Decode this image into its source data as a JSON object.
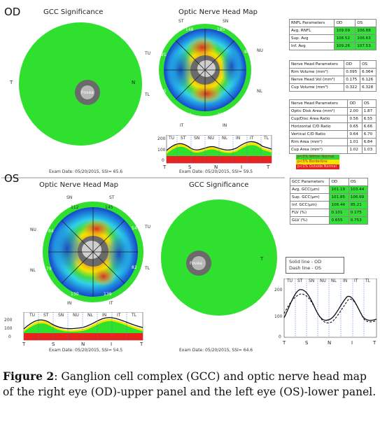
{
  "od": {
    "eye_label": "OD",
    "gcc_title": "GCC Significance",
    "onh_title": "Optic Nerve Head Map",
    "fovea": "Fovea",
    "side_left": "T",
    "side_right": "N",
    "onh_labels": {
      "ST": "ST",
      "SN": "SN",
      "TU": "TU",
      "NU": "NU",
      "TL": "TL",
      "NL": "NL",
      "IT": "IT",
      "IN": "IN"
    },
    "onh_values": {
      "top_left": "148",
      "top_right": "185",
      "left_upper": "91",
      "right_upper": "86",
      "left_lower": "85",
      "bottom_left": "131",
      "bottom_right": "135"
    },
    "graph_yticks": [
      "200",
      "100",
      "0"
    ],
    "graph_sectors": [
      "TU",
      "ST",
      "SN",
      "NU",
      "NL",
      "IN",
      "IT",
      "TL"
    ],
    "graph_xlabels": [
      "T",
      "S",
      "N",
      "I",
      "T"
    ],
    "exam_line": "Exam Date: 05/20/2015, SSI= 65.6",
    "exam_line_right": "Exam Date: 05/20/2015, SSI= 59.5"
  },
  "os": {
    "eye_label": "OS",
    "gcc_title": "GCC Significance",
    "onh_title": "Optic Nerve Head Map",
    "fovea": "Fovea",
    "side_right": "T",
    "onh_labels": {
      "SN": "SN",
      "ST": "ST",
      "NU": "NU",
      "TU": "TU",
      "NL": "NL",
      "TL": "TL",
      "IN": "IN",
      "IT": "IT"
    },
    "onh_values": {
      "top_left": "112",
      "top_right": "145",
      "left_upper": "84",
      "right_upper": "54",
      "left_lower": "79",
      "right_lower": "82",
      "bottom_left": "130",
      "bottom_right": "139"
    },
    "graph_yticks": [
      "200",
      "100",
      "0"
    ],
    "graph_sectors": [
      "TU",
      "ST",
      "SN",
      "NU",
      "NL",
      "IN",
      "IT",
      "TL"
    ],
    "graph_xlabels": [
      "T",
      "S",
      "N",
      "I",
      "T"
    ],
    "exam_line": "Exam Date: 05/20/2015, SSI= 54.5",
    "exam_line_right": "Exam Date: 05/20/2015, SSI= 64.6"
  },
  "rnfl_table": {
    "headers": [
      "RNFL Parameters",
      "OD",
      "OS"
    ],
    "rows": [
      [
        "Avg. RNFL",
        "109.09",
        "106.88"
      ],
      [
        "Sup. Avg",
        "108.52",
        "106.63"
      ],
      [
        "Inf. Avg",
        "109.26",
        "107.53"
      ]
    ]
  },
  "nerve_head_table_1": {
    "headers": [
      "Nerve Head Parameters",
      "OD",
      "OS"
    ],
    "rows": [
      [
        "Rim Volume (mm³)",
        "0.095",
        "6.064"
      ],
      [
        "Nerve Head Vol (mm³)",
        "0.175",
        "6.126"
      ],
      [
        "Cup Volume (mm³)",
        "0.322",
        "6.328"
      ]
    ]
  },
  "nerve_head_table_2": {
    "headers": [
      "Nerve Head Parameters",
      "OD",
      "OS"
    ],
    "rows": [
      [
        "Optic Disk Area (mm²)",
        "2.00",
        "1.87"
      ],
      [
        "Cup/Disc Area Ratio",
        "0.56",
        "6.55"
      ],
      [
        "Horizontal C/D Ratio",
        "0.65",
        "6.66"
      ],
      [
        "Vertical C/D Ratio",
        "0.64",
        "6.70"
      ],
      [
        "Rim Area (mm²)",
        "1.01",
        "6.84"
      ],
      [
        "Cup Area (mm²)",
        "1.02",
        "1.03"
      ]
    ]
  },
  "legend": {
    "items": [
      "p<5% Within Normal",
      "p<5% Borderline",
      "p<1% Outside Normal"
    ],
    "colors": [
      "#33d633",
      "#f2e600",
      "#e8231f"
    ]
  },
  "gcc_table": {
    "headers": [
      "GCC Parameters",
      "OD",
      "OS"
    ],
    "rows": [
      [
        "Avg. GCC(µm)",
        "101.19",
        "103.44"
      ],
      [
        "Sup. GCC(µm)",
        "101.85",
        "106.69"
      ],
      [
        "Inf. GCC(µm)",
        "106.44",
        "95.21"
      ],
      [
        "FLV (%)",
        "0.101",
        "0.175"
      ],
      [
        "GLV (%)",
        "0.655",
        "0.753"
      ]
    ]
  },
  "compare_graph": {
    "legend_solid": "Solid line - OD",
    "legend_dash": "Dash line - OS",
    "yticks": [
      "200",
      "100",
      "0"
    ],
    "sectors": [
      "TU",
      "ST",
      "SN",
      "NU",
      "NL",
      "IN",
      "IT",
      "TL"
    ],
    "xlabels": [
      "T",
      "S",
      "N",
      "I",
      "T"
    ]
  },
  "caption": {
    "figure_label": "Figure 2",
    "text": ": Ganglion cell complex (GCC) and optic nerve head map of the right eye (OD)-upper panel and the left eye (OS)-lower panel."
  },
  "colors": {
    "green": "#2fe02f",
    "red": "#e8231f",
    "yellow": "#f2e600",
    "blue": "#1846c8",
    "cyan": "#2fd3e6"
  }
}
